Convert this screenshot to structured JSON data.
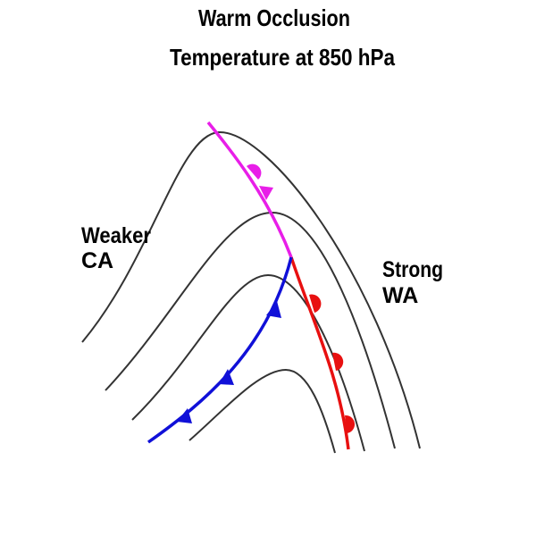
{
  "header": {
    "title": "Warm Occlusion",
    "subtitle": "Temperature at 850 hPa"
  },
  "labels": [
    {
      "lines": [
        "Weaker",
        "CA"
      ]
    },
    {
      "lines": [
        "Strong",
        "WA"
      ]
    }
  ]
}
